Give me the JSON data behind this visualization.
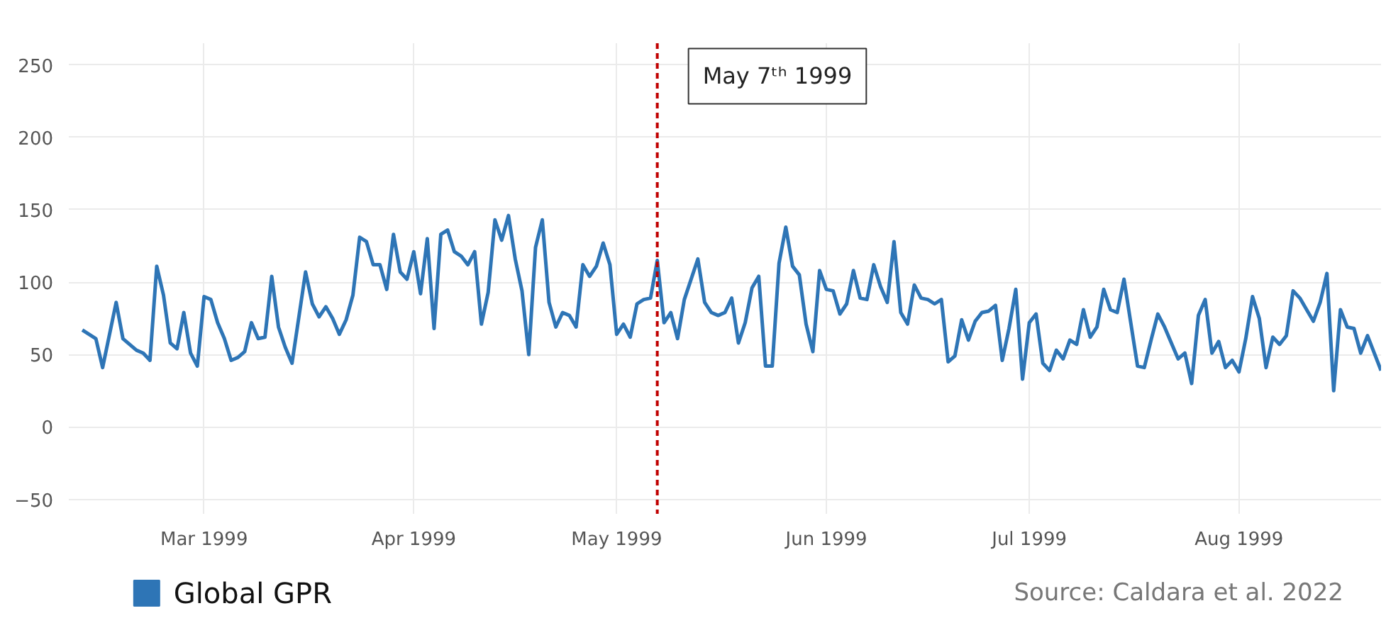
{
  "chart_data": {
    "type": "line",
    "x": [
      "1999-02-11",
      "1999-02-13",
      "1999-02-14",
      "1999-02-16",
      "1999-02-17",
      "1999-02-19",
      "1999-02-20",
      "1999-02-21",
      "1999-02-22",
      "1999-02-23",
      "1999-02-24",
      "1999-02-25",
      "1999-02-26",
      "1999-02-27",
      "1999-02-28",
      "1999-03-01",
      "1999-03-02",
      "1999-03-03",
      "1999-03-04",
      "1999-03-05",
      "1999-03-06",
      "1999-03-07",
      "1999-03-08",
      "1999-03-09",
      "1999-03-10",
      "1999-03-11",
      "1999-03-12",
      "1999-03-13",
      "1999-03-14",
      "1999-03-16",
      "1999-03-17",
      "1999-03-18",
      "1999-03-19",
      "1999-03-20",
      "1999-03-21",
      "1999-03-22",
      "1999-03-23",
      "1999-03-24",
      "1999-03-25",
      "1999-03-26",
      "1999-03-27",
      "1999-03-28",
      "1999-03-29",
      "1999-03-30",
      "1999-03-31",
      "1999-04-01",
      "1999-04-02",
      "1999-04-03",
      "1999-04-04",
      "1999-04-05",
      "1999-04-06",
      "1999-04-07",
      "1999-04-08",
      "1999-04-09",
      "1999-04-10",
      "1999-04-11",
      "1999-04-12",
      "1999-04-13",
      "1999-04-14",
      "1999-04-15",
      "1999-04-16",
      "1999-04-17",
      "1999-04-18",
      "1999-04-19",
      "1999-04-20",
      "1999-04-21",
      "1999-04-22",
      "1999-04-23",
      "1999-04-24",
      "1999-04-25",
      "1999-04-26",
      "1999-04-27",
      "1999-04-28",
      "1999-04-29",
      "1999-04-30",
      "1999-05-01",
      "1999-05-02",
      "1999-05-03",
      "1999-05-04",
      "1999-05-05",
      "1999-05-06",
      "1999-05-07",
      "1999-05-08",
      "1999-05-09",
      "1999-05-10",
      "1999-05-11",
      "1999-05-13",
      "1999-05-14",
      "1999-05-15",
      "1999-05-16",
      "1999-05-17",
      "1999-05-18",
      "1999-05-19",
      "1999-05-20",
      "1999-05-21",
      "1999-05-22",
      "1999-05-23",
      "1999-05-24",
      "1999-05-25",
      "1999-05-26",
      "1999-05-27",
      "1999-05-28",
      "1999-05-29",
      "1999-05-30",
      "1999-05-31",
      "1999-06-01",
      "1999-06-02",
      "1999-06-03",
      "1999-06-04",
      "1999-06-05",
      "1999-06-06",
      "1999-06-07",
      "1999-06-08",
      "1999-06-09",
      "1999-06-10",
      "1999-06-11",
      "1999-06-12",
      "1999-06-13",
      "1999-06-14",
      "1999-06-15",
      "1999-06-16",
      "1999-06-17",
      "1999-06-18",
      "1999-06-19",
      "1999-06-20",
      "1999-06-21",
      "1999-06-22",
      "1999-06-23",
      "1999-06-24",
      "1999-06-25",
      "1999-06-26",
      "1999-06-27",
      "1999-06-28",
      "1999-06-29",
      "1999-06-30",
      "1999-07-01",
      "1999-07-02",
      "1999-07-03",
      "1999-07-04",
      "1999-07-05",
      "1999-07-06",
      "1999-07-07",
      "1999-07-08",
      "1999-07-09",
      "1999-07-10",
      "1999-07-11",
      "1999-07-12",
      "1999-07-13",
      "1999-07-14",
      "1999-07-15",
      "1999-07-16",
      "1999-07-17",
      "1999-07-18",
      "1999-07-19",
      "1999-07-20",
      "1999-07-21",
      "1999-07-22",
      "1999-07-23",
      "1999-07-24",
      "1999-07-25",
      "1999-07-26",
      "1999-07-27",
      "1999-07-28",
      "1999-07-29",
      "1999-07-30",
      "1999-07-31",
      "1999-08-01",
      "1999-08-02",
      "1999-08-03",
      "1999-08-04",
      "1999-08-05",
      "1999-08-06",
      "1999-08-07",
      "1999-08-08",
      "1999-08-09",
      "1999-08-10",
      "1999-08-11",
      "1999-08-12",
      "1999-08-13",
      "1999-08-14",
      "1999-08-15",
      "1999-08-16",
      "1999-08-17",
      "1999-08-18",
      "1999-08-19",
      "1999-08-20",
      "1999-08-22"
    ],
    "series": [
      {
        "name": "Global GPR",
        "color": "#2e75b6",
        "values": [
          67,
          61,
          41,
          86,
          61,
          53,
          51,
          46,
          111,
          91,
          58,
          54,
          79,
          51,
          42,
          90,
          88,
          72,
          61,
          46,
          48,
          52,
          72,
          61,
          62,
          104,
          69,
          55,
          44,
          107,
          85,
          76,
          83,
          75,
          64,
          74,
          91,
          131,
          128,
          112,
          112,
          95,
          133,
          107,
          102,
          121,
          92,
          130,
          68,
          133,
          136,
          121,
          118,
          112,
          121,
          71,
          93,
          143,
          129,
          146,
          116,
          94,
          50,
          124,
          143,
          86,
          69,
          79,
          77,
          69,
          112,
          104,
          111,
          127,
          112,
          64,
          71,
          62,
          85,
          88,
          89,
          115,
          72,
          79,
          61,
          88,
          116,
          86,
          79,
          77,
          79,
          89,
          58,
          72,
          96,
          104,
          42,
          42,
          113,
          138,
          111,
          105,
          71,
          52,
          108,
          95,
          94,
          78,
          85,
          108,
          89,
          88,
          112,
          97,
          86,
          128,
          79,
          71,
          98,
          89,
          88,
          85,
          88,
          45,
          49,
          74,
          60,
          73,
          79,
          80,
          84,
          46,
          68,
          95,
          33,
          72,
          78,
          44,
          39,
          53,
          47,
          60,
          57,
          81,
          62,
          69,
          95,
          81,
          79,
          102,
          72,
          42,
          41,
          60,
          78,
          69,
          58,
          47,
          51,
          30,
          77,
          88,
          51,
          59,
          41,
          46,
          38,
          61,
          90,
          75,
          41,
          62,
          57,
          63,
          94,
          89,
          81,
          73,
          86,
          106,
          25,
          81,
          69,
          68,
          51,
          63,
          39
        ]
      }
    ],
    "xlim": [
      "1999-02-09",
      "1999-08-22"
    ],
    "xticks": [
      {
        "value": "1999-03-01",
        "label": "Mar 1999"
      },
      {
        "value": "1999-04-01",
        "label": "Apr 1999"
      },
      {
        "value": "1999-05-01",
        "label": "May 1999"
      },
      {
        "value": "1999-06-01",
        "label": "Jun 1999"
      },
      {
        "value": "1999-07-01",
        "label": "Jul 1999"
      },
      {
        "value": "1999-08-01",
        "label": "Aug 1999"
      }
    ],
    "ylim": [
      -60,
      265
    ],
    "yticks": [
      {
        "value": -50,
        "label": "−50"
      },
      0,
      50,
      100,
      150,
      200,
      250
    ],
    "ref_lines": [
      {
        "axis": "x",
        "value": "1999-05-07",
        "label": "May 7ᵗʰ 1999",
        "color": "#c00000",
        "line_style": "dashed"
      }
    ],
    "annotations": [
      "Source: Caldara et al. 2022"
    ],
    "grid": true,
    "legend": "bottom"
  }
}
